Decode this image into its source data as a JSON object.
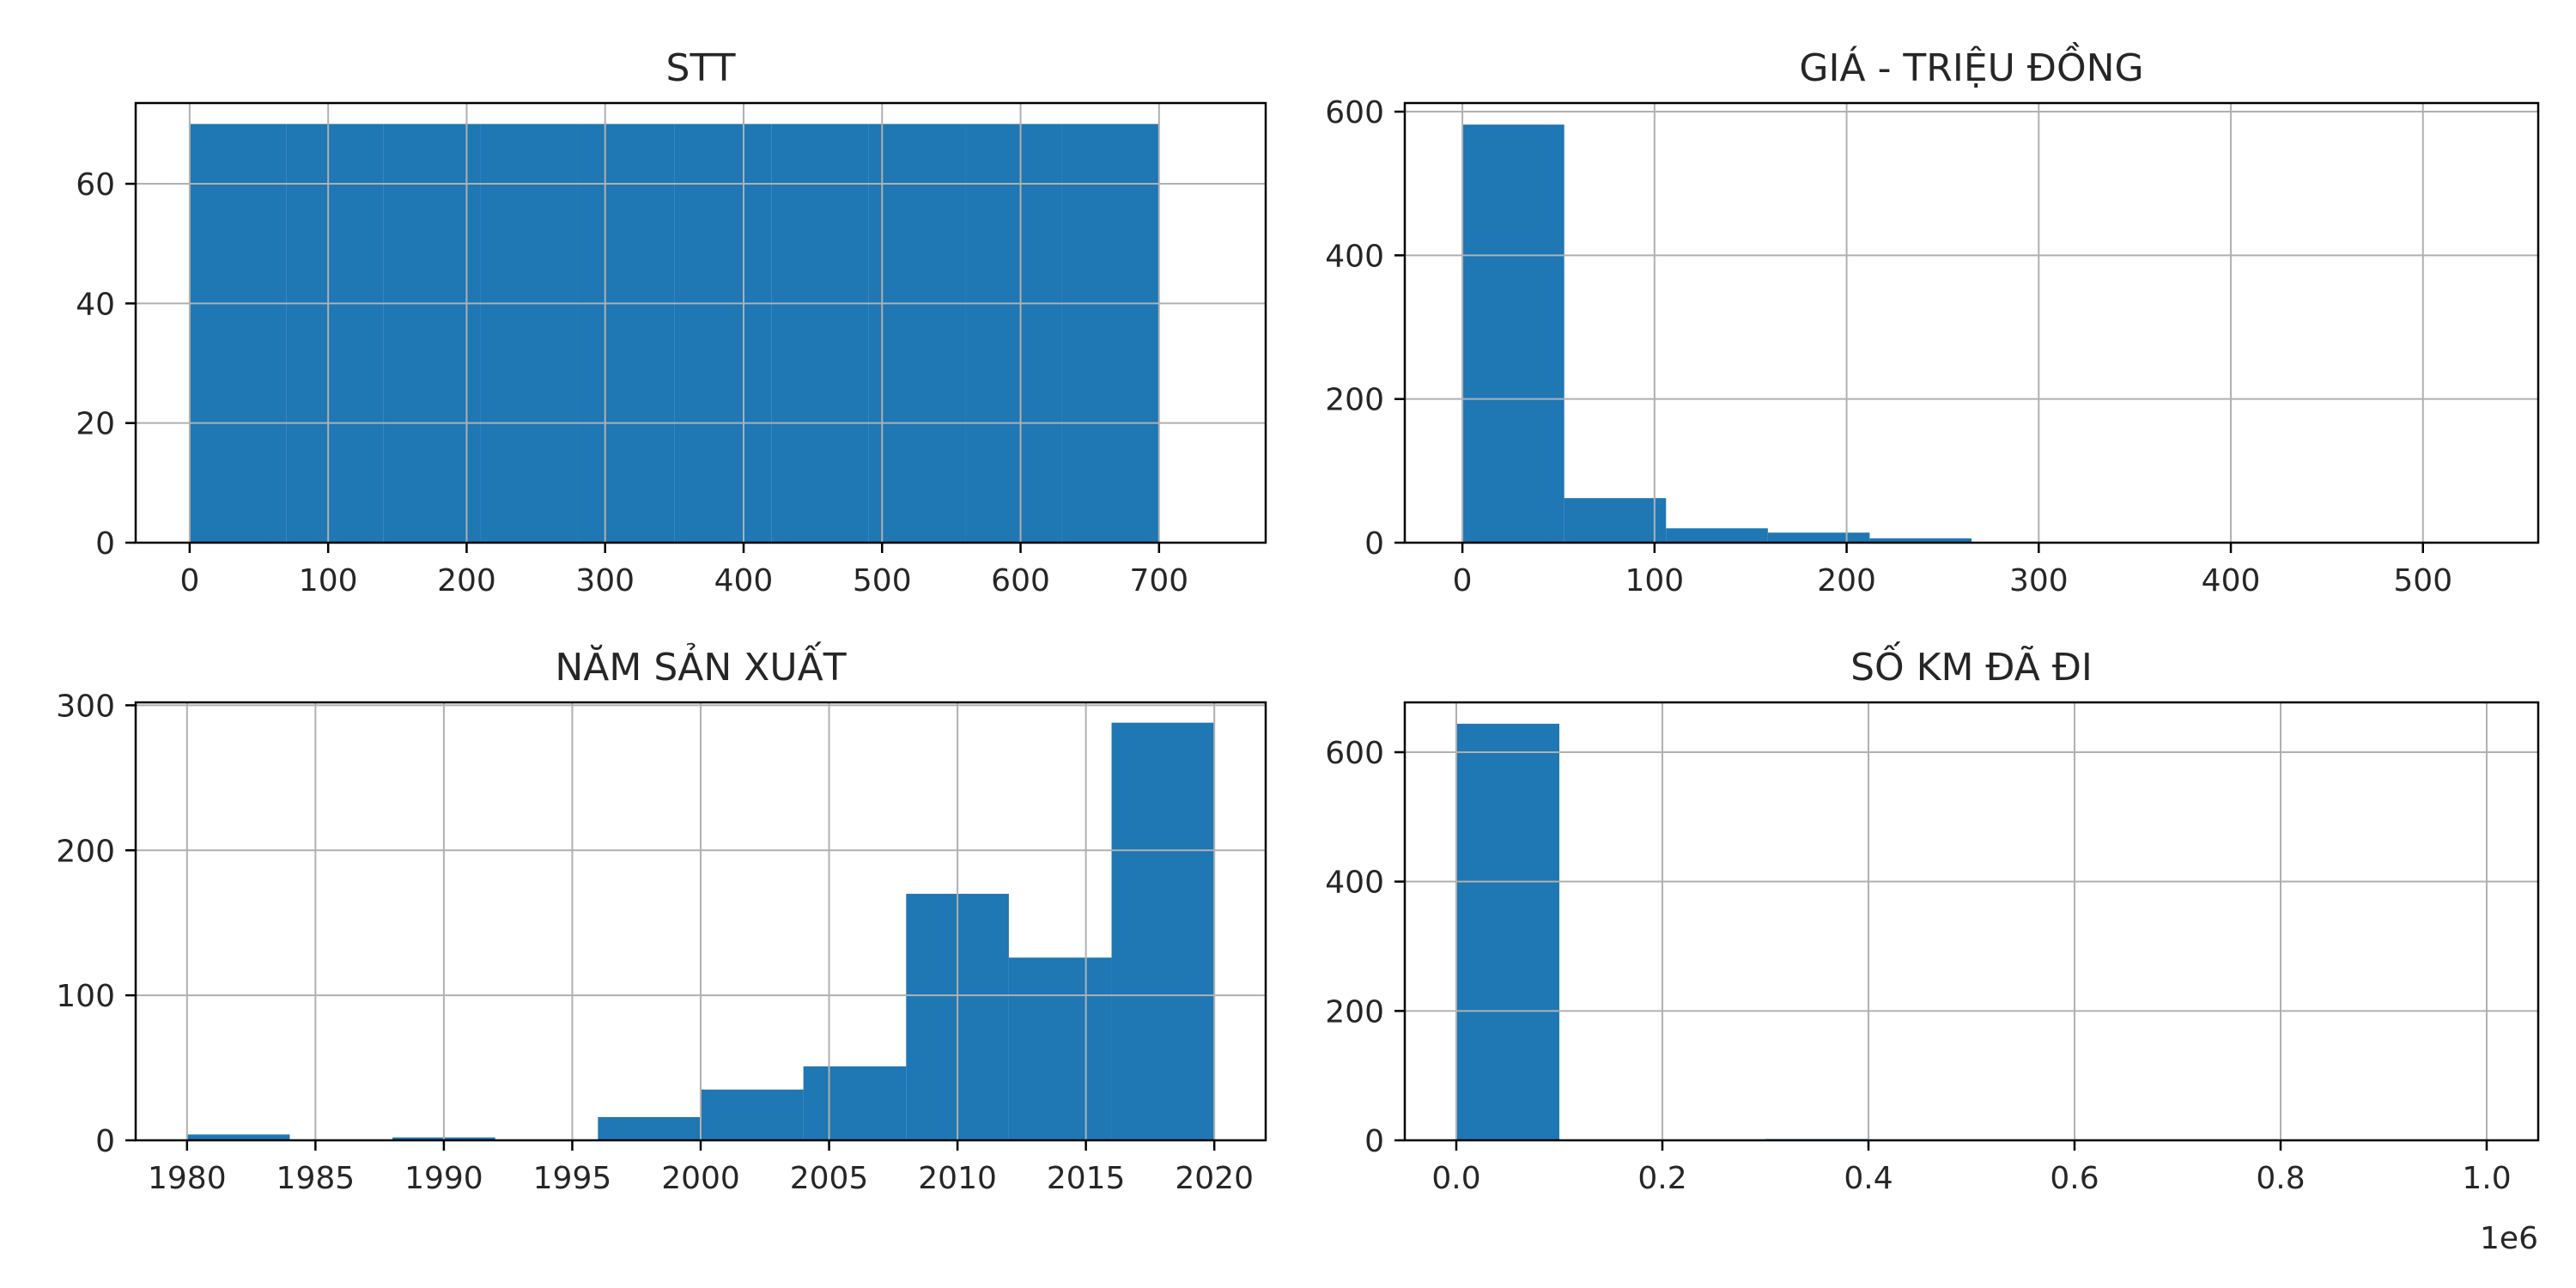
{
  "chart_data": [
    {
      "type": "bar",
      "title": "STT",
      "bar_color": "#1f77b4",
      "grid": true,
      "xlim": [
        -39,
        777
      ],
      "ylim": [
        0,
        73.5
      ],
      "bin_edges": [
        0,
        70,
        140,
        210,
        280,
        350,
        420,
        490,
        560,
        630,
        700
      ],
      "values": [
        70,
        70,
        70,
        70,
        70,
        70,
        70,
        70,
        70,
        70
      ],
      "xticks": [
        0,
        100,
        200,
        300,
        400,
        500,
        600,
        700
      ],
      "xtick_labels": [
        "0",
        "100",
        "200",
        "300",
        "400",
        "500",
        "600",
        "700"
      ],
      "yticks": [
        0,
        20,
        40,
        60
      ],
      "ytick_labels": [
        "0",
        "20",
        "40",
        "60"
      ],
      "offset_label": ""
    },
    {
      "type": "bar",
      "title": "GIÁ - TRIỆU ĐỒNG",
      "bar_color": "#1f77b4",
      "grid": true,
      "xlim": [
        -30,
        560
      ],
      "ylim": [
        0,
        612
      ],
      "bin_edges": [
        0,
        53,
        106,
        159,
        212,
        265,
        318,
        371,
        424,
        477,
        530
      ],
      "values": [
        582,
        62,
        20,
        14,
        6,
        0,
        0,
        1,
        0,
        1
      ],
      "xticks": [
        0,
        100,
        200,
        300,
        400,
        500
      ],
      "xtick_labels": [
        "0",
        "100",
        "200",
        "300",
        "400",
        "500"
      ],
      "yticks": [
        0,
        200,
        400,
        600
      ],
      "ytick_labels": [
        "0",
        "200",
        "400",
        "600"
      ],
      "offset_label": ""
    },
    {
      "type": "bar",
      "title": "NĂM SẢN XUẤT",
      "bar_color": "#1f77b4",
      "grid": true,
      "xlim": [
        1978,
        2022
      ],
      "ylim": [
        0,
        302
      ],
      "bin_edges": [
        1980,
        1984,
        1988,
        1992,
        1996,
        2000,
        2004,
        2008,
        2012,
        2016,
        2020
      ],
      "values": [
        4,
        0,
        2,
        0,
        16,
        35,
        51,
        170,
        126,
        288
      ],
      "xticks": [
        1980,
        1985,
        1990,
        1995,
        2000,
        2005,
        2010,
        2015,
        2020
      ],
      "xtick_labels": [
        "1980",
        "1985",
        "1990",
        "1995",
        "2000",
        "2005",
        "2010",
        "2015",
        "2020"
      ],
      "yticks": [
        0,
        100,
        200,
        300
      ],
      "ytick_labels": [
        "0",
        "100",
        "200",
        "300"
      ],
      "offset_label": ""
    },
    {
      "type": "bar",
      "title": "SỐ KM ĐÃ ĐI",
      "bar_color": "#1f77b4",
      "grid": true,
      "xlim": [
        -0.05,
        1.05
      ],
      "ylim": [
        0,
        677
      ],
      "bin_edges": [
        0,
        0.1,
        0.2,
        0.3,
        0.4,
        0.5,
        0.6,
        0.7,
        0.8,
        0.9,
        1.0
      ],
      "values": [
        644,
        1,
        0,
        2,
        0,
        0,
        0,
        0,
        0,
        0
      ],
      "xticks": [
        0,
        0.2,
        0.4,
        0.6,
        0.8,
        1.0
      ],
      "xtick_labels": [
        "0.0",
        "0.2",
        "0.4",
        "0.6",
        "0.8",
        "1.0"
      ],
      "yticks": [
        0,
        200,
        400,
        600
      ],
      "ytick_labels": [
        "0",
        "200",
        "400",
        "600"
      ],
      "offset_label": "1e6"
    }
  ]
}
